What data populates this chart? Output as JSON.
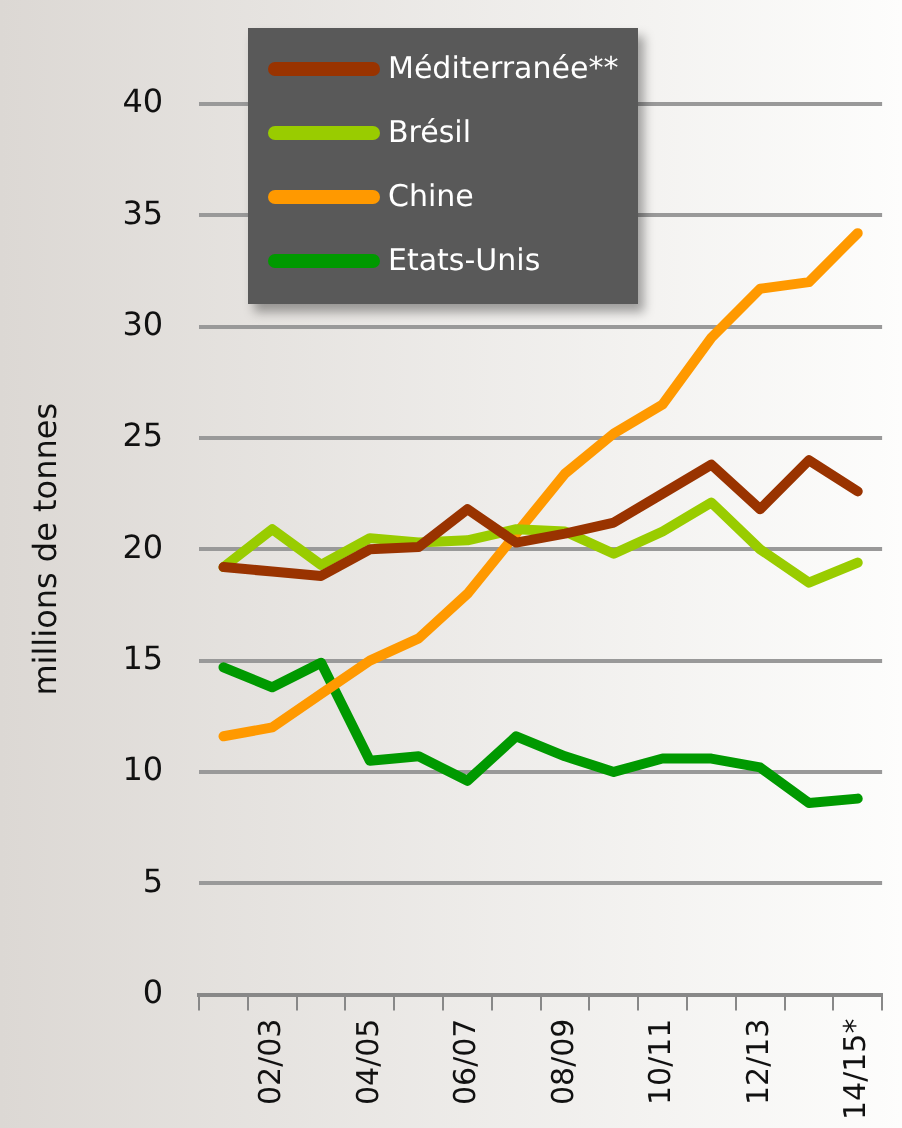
{
  "chart_data": {
    "type": "line",
    "ylabel": "millions de tonnes",
    "categories": [
      null,
      "02/03",
      null,
      "04/05",
      null,
      "06/07",
      null,
      "08/09",
      null,
      "10/11",
      null,
      "12/13",
      null,
      "14/15*"
    ],
    "series": [
      {
        "name": "Méditerranée**",
        "color": "#993300",
        "values": [
          19.2,
          19.0,
          18.8,
          20.0,
          20.1,
          21.8,
          20.3,
          20.7,
          21.2,
          22.5,
          23.8,
          21.8,
          24.0,
          22.6
        ]
      },
      {
        "name": "Brésil",
        "color": "#99cc00",
        "values": [
          19.2,
          20.9,
          19.3,
          20.5,
          20.3,
          20.4,
          20.9,
          20.8,
          19.8,
          20.8,
          22.1,
          20.0,
          18.5,
          19.4
        ]
      },
      {
        "name": "Chine",
        "color": "#ff9900",
        "values": [
          11.6,
          12.0,
          13.5,
          15.0,
          16.0,
          18.0,
          20.7,
          23.4,
          25.2,
          26.5,
          29.5,
          31.7,
          32.0,
          34.2
        ]
      },
      {
        "name": "Etats-Unis",
        "color": "#009900",
        "values": [
          14.7,
          13.8,
          14.9,
          10.5,
          10.7,
          9.6,
          11.6,
          10.7,
          10.0,
          10.6,
          10.6,
          10.2,
          8.6,
          8.8
        ]
      }
    ],
    "ylim": [
      0,
      40
    ],
    "yticks": [
      0,
      5,
      10,
      15,
      20,
      25,
      30,
      35,
      40
    ],
    "grid": "y",
    "legend": "top left",
    "marker": "none",
    "line_style": "solid"
  }
}
